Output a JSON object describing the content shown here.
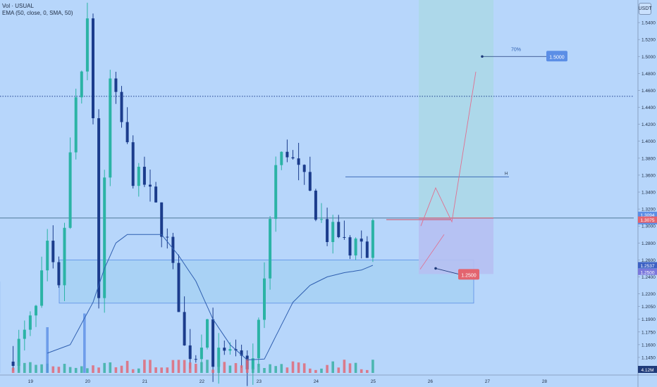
{
  "legend": {
    "line1": "Vol · USUAL",
    "line2": "EMA (50, close, 0, SMA, 50)"
  },
  "currency_badge": "USDT",
  "annotations": {
    "target_pct": "70%",
    "target_price": "1.5000",
    "stop_price": "1.2500",
    "h_marker": "H"
  },
  "price_scale": {
    "current_price": "1.3094",
    "countdown": "35:07",
    "red_price": "1.3075",
    "blue_price": "1.2537",
    "purple_price": "1.2500",
    "volume_badge": "4.12M"
  },
  "colors": {
    "background": "#b7d6fb",
    "up_candle": "#2bb3a5",
    "down_candle": "#1b3c8c",
    "volume_up": "#3bb0a3",
    "volume_down": "#e06a78",
    "ema": "#2f5fb0",
    "accent_blue": "#5b8ee6",
    "accent_red": "#e3646f",
    "target_zone": "#acd8e6",
    "stop_zone": "#b6c0f2",
    "demand_zone": "#a9d2f5"
  },
  "chart_data": {
    "type": "candlestick",
    "title": "",
    "symbol": "USUAL",
    "quote": "USDT",
    "ylim": [
      1.13,
      1.555
    ],
    "y_ticks": [
      "1.5400",
      "1.5200",
      "1.5000",
      "1.4800",
      "1.4600",
      "1.4400",
      "1.4200",
      "1.4000",
      "1.3800",
      "1.3600",
      "1.3400",
      "1.3200",
      "1.3000",
      "1.2800",
      "1.2600",
      "1.2400",
      "1.2200",
      "1.2050",
      "1.1900",
      "1.1750",
      "1.1600",
      "1.1450"
    ],
    "x_ticks": [
      "17",
      "19",
      "20",
      "21",
      "22",
      "23",
      "24",
      "25",
      "26",
      "27",
      "28"
    ],
    "x_tick_index": [
      -8,
      2,
      12,
      22,
      32,
      42,
      52,
      62,
      72,
      82,
      92
    ],
    "ohlc_anchors": [
      [
        0,
        1.15
      ],
      [
        2,
        1.17
      ],
      [
        4,
        1.2
      ],
      [
        6,
        1.27
      ],
      [
        8,
        1.22
      ],
      [
        10,
        1.38
      ],
      [
        11,
        1.45
      ],
      [
        12,
        1.47
      ],
      [
        13,
        1.54
      ],
      [
        14,
        1.43
      ],
      [
        15,
        1.22
      ],
      [
        17,
        1.47
      ],
      [
        19,
        1.42
      ],
      [
        21,
        1.36
      ],
      [
        23,
        1.35
      ],
      [
        25,
        1.32
      ],
      [
        27,
        1.28
      ],
      [
        29,
        1.21
      ],
      [
        30,
        1.155
      ],
      [
        32,
        1.15
      ],
      [
        34,
        1.19
      ],
      [
        35,
        1.145
      ],
      [
        37,
        1.145
      ],
      [
        40,
        1.14
      ],
      [
        42,
        1.14
      ],
      [
        44,
        1.23
      ],
      [
        45,
        1.31
      ],
      [
        46,
        1.37
      ],
      [
        48,
        1.39
      ],
      [
        49,
        1.375
      ],
      [
        51,
        1.35
      ],
      [
        53,
        1.32
      ],
      [
        55,
        1.29
      ],
      [
        57,
        1.29
      ],
      [
        59,
        1.265
      ],
      [
        60,
        1.295
      ],
      [
        62,
        1.265
      ],
      [
        63,
        1.3094
      ]
    ],
    "ema50_anchors": [
      [
        6,
        1.15
      ],
      [
        10,
        1.16
      ],
      [
        14,
        1.21
      ],
      [
        16,
        1.25
      ],
      [
        18,
        1.28
      ],
      [
        20,
        1.29
      ],
      [
        23,
        1.29
      ],
      [
        26,
        1.29
      ],
      [
        29,
        1.265
      ],
      [
        32,
        1.235
      ],
      [
        35,
        1.19
      ],
      [
        38,
        1.16
      ],
      [
        41,
        1.142
      ],
      [
        44,
        1.143
      ],
      [
        46,
        1.17
      ],
      [
        49,
        1.21
      ],
      [
        52,
        1.23
      ],
      [
        55,
        1.24
      ],
      [
        58,
        1.245
      ],
      [
        61,
        1.248
      ],
      [
        63,
        1.2537
      ]
    ],
    "volume_scale_max": 4.12,
    "levels": {
      "dotted_resistance": 1.453,
      "current_price": 1.3094,
      "h_line": 1.358,
      "red_line": 1.3075,
      "demand_zone": [
        1.209,
        1.26
      ],
      "entry_price": 1.3094,
      "target_price": 1.5,
      "stop_price": 1.25
    }
  }
}
